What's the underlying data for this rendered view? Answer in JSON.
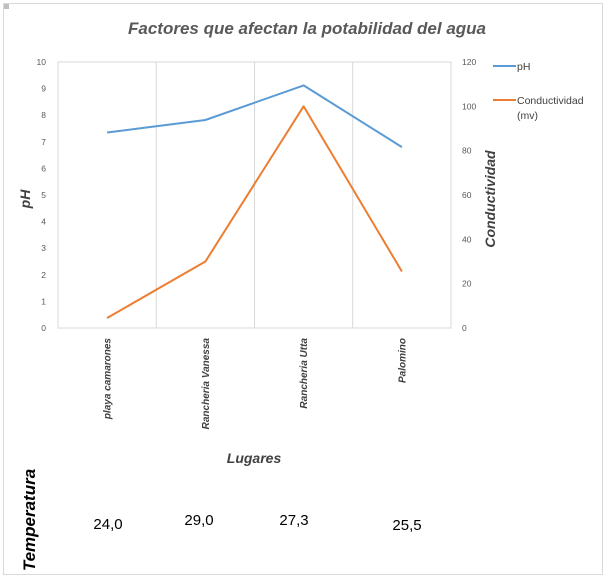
{
  "chart_data": {
    "type": "line",
    "title": "Factores que afectan la potabilidad del agua",
    "categories": [
      "playa camarones",
      "Rancheria Vanessa",
      "Rancheria Utta",
      "Palomino"
    ],
    "xlabel": "Lugares",
    "ylabel": "pH",
    "y2label": "Conductividad",
    "ylim": [
      0,
      10
    ],
    "y2lim": [
      0,
      120
    ],
    "yticks": [
      "0",
      "1",
      "2",
      "3",
      "4",
      "5",
      "6",
      "7",
      "8",
      "9",
      "10"
    ],
    "y2ticks": [
      "0",
      "20",
      "40",
      "60",
      "80",
      "100",
      "120"
    ],
    "grid": true,
    "legend_position": "right",
    "series": [
      {
        "name": "pH",
        "axis": "left",
        "color": "#5b9bd5",
        "values": [
          7.35,
          7.82,
          9.12,
          6.8
        ]
      },
      {
        "name": "Conductividad (mv)",
        "legend_lines": [
          "Conductividad",
          "(mv)"
        ],
        "axis": "right",
        "color": "#ed7d31",
        "values": [
          4.5,
          30,
          100,
          25.5
        ]
      }
    ]
  },
  "extra_row": {
    "label": "Temperatura",
    "values": [
      "24,0",
      "29,0",
      "27,3",
      "25,5"
    ]
  }
}
